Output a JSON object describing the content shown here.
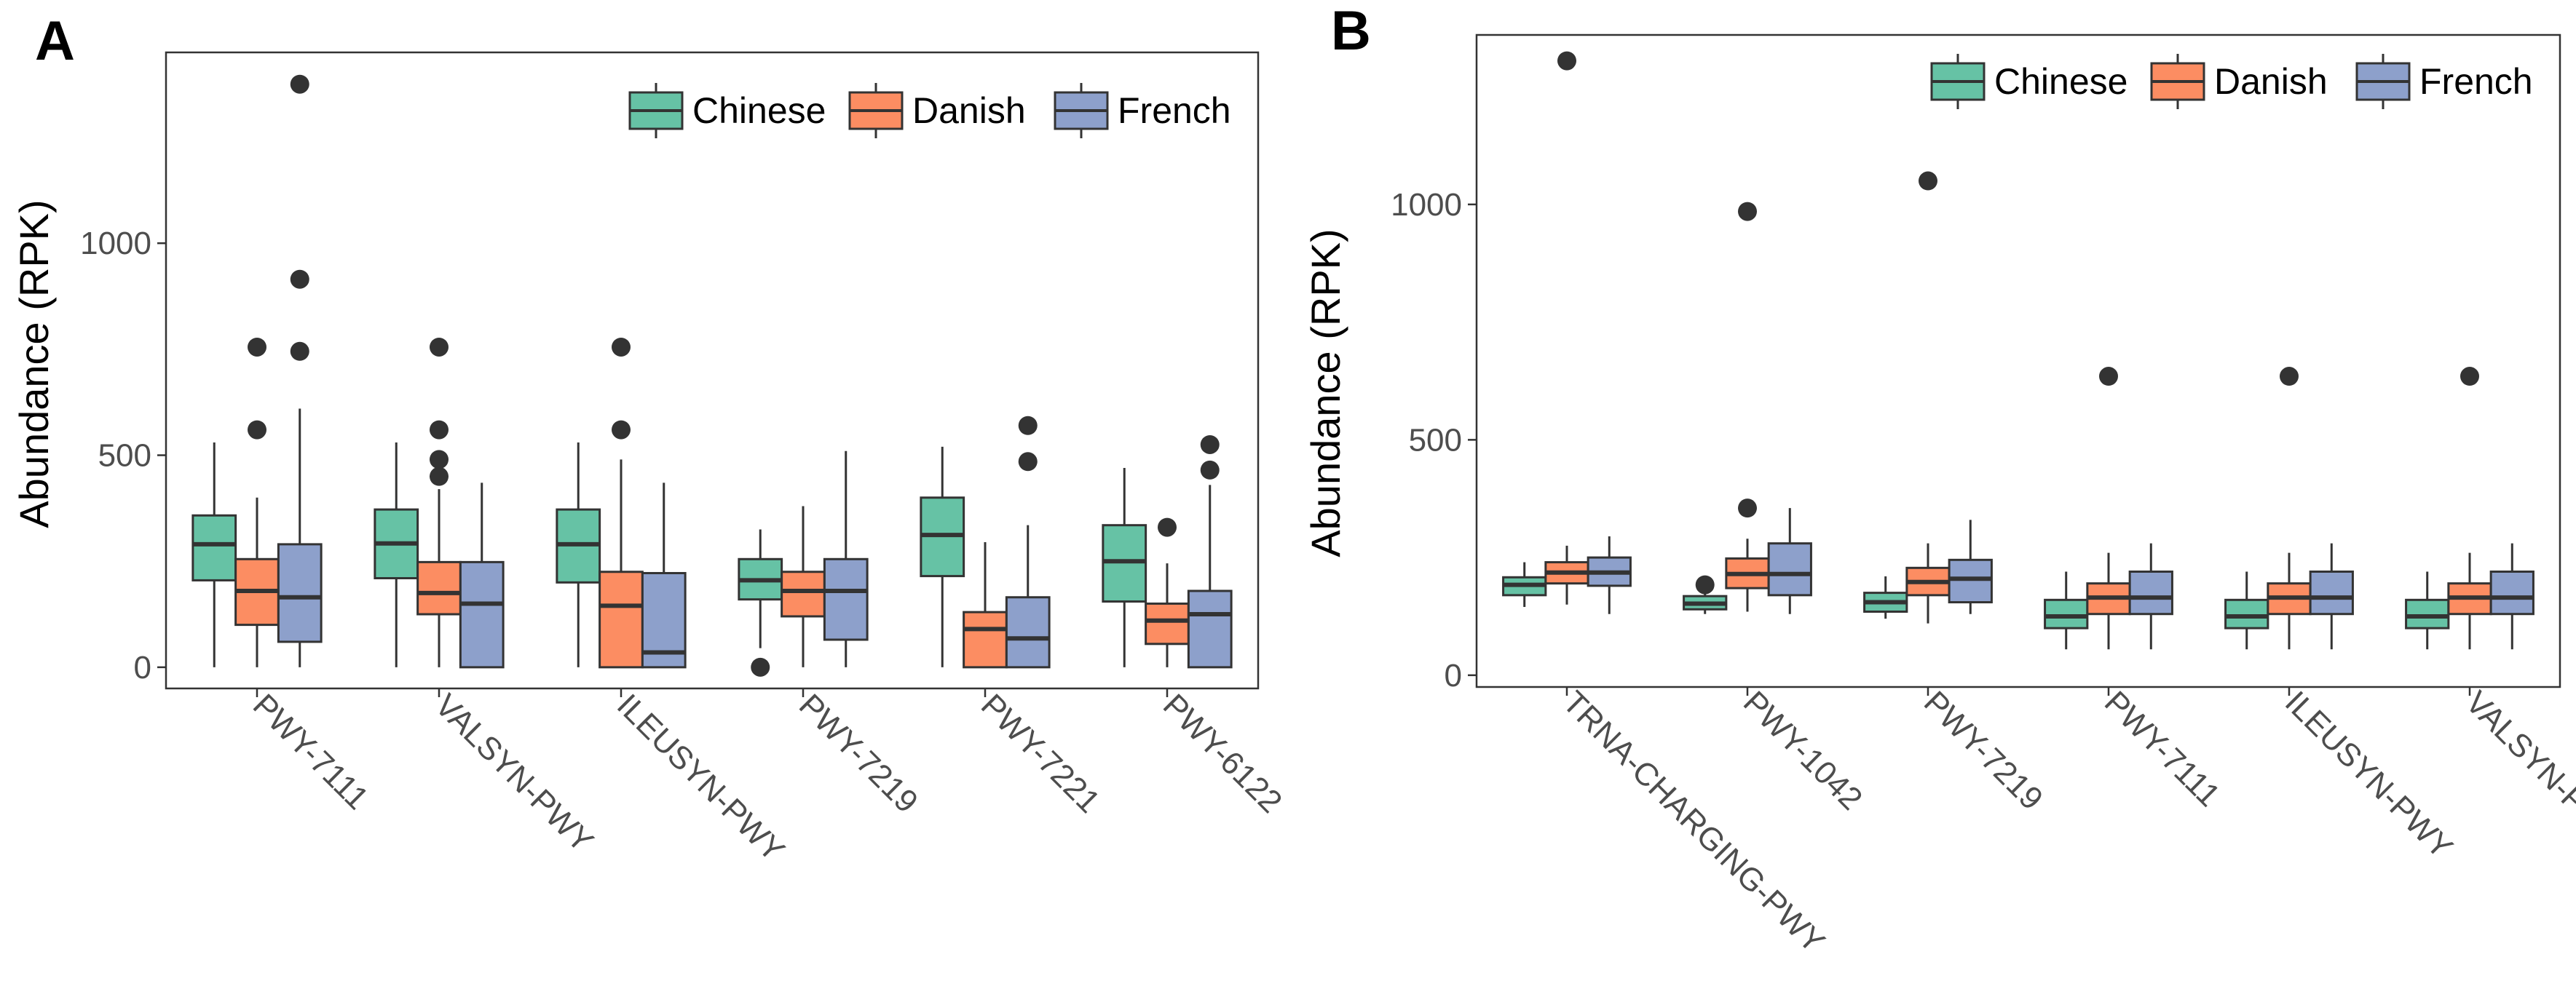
{
  "colors": {
    "Chinese": "#66c2a5",
    "Danish": "#fc8d62",
    "French": "#8da0cb",
    "stroke": "#333333",
    "frame": "#333333"
  },
  "chart_data": [
    {
      "panel": "A",
      "type": "boxplot",
      "ylabel": "Abundance (RPK)",
      "ylim": [
        -50,
        1450
      ],
      "yticks": [
        0,
        500,
        1000
      ],
      "yticklabels": [
        "0",
        "500",
        "1000"
      ],
      "legend": [
        "Chinese",
        "Danish",
        "French"
      ],
      "legend_position": "top-right",
      "categories": [
        "PWY-7111",
        "VALSYN-PWY",
        "ILEUSYN-PWY",
        "PWY-7219",
        "PWY-7221",
        "PWY-6122"
      ],
      "series": [
        {
          "name": "Chinese",
          "boxes": [
            {
              "whisker_low": 0,
              "q1": 205,
              "median": 290,
              "q3": 358,
              "whisker_high": 530,
              "outliers": []
            },
            {
              "whisker_low": 0,
              "q1": 210,
              "median": 292,
              "q3": 372,
              "whisker_high": 530,
              "outliers": []
            },
            {
              "whisker_low": 0,
              "q1": 200,
              "median": 290,
              "q3": 372,
              "whisker_high": 530,
              "outliers": []
            },
            {
              "whisker_low": 45,
              "q1": 160,
              "median": 205,
              "q3": 255,
              "whisker_high": 325,
              "outliers": [
                0
              ]
            },
            {
              "whisker_low": 0,
              "q1": 215,
              "median": 312,
              "q3": 400,
              "whisker_high": 520,
              "outliers": []
            },
            {
              "whisker_low": 0,
              "q1": 155,
              "median": 250,
              "q3": 335,
              "whisker_high": 470,
              "outliers": []
            }
          ]
        },
        {
          "name": "Danish",
          "boxes": [
            {
              "whisker_low": 0,
              "q1": 100,
              "median": 180,
              "q3": 255,
              "whisker_high": 400,
              "outliers": [
                560,
                755
              ]
            },
            {
              "whisker_low": 0,
              "q1": 125,
              "median": 175,
              "q3": 248,
              "whisker_high": 420,
              "outliers": [
                450,
                490,
                560,
                755
              ]
            },
            {
              "whisker_low": 0,
              "q1": 0,
              "median": 145,
              "q3": 225,
              "whisker_high": 490,
              "outliers": [
                560,
                755
              ]
            },
            {
              "whisker_low": 0,
              "q1": 120,
              "median": 180,
              "q3": 225,
              "whisker_high": 380,
              "outliers": []
            },
            {
              "whisker_low": 0,
              "q1": 0,
              "median": 90,
              "q3": 130,
              "whisker_high": 295,
              "outliers": []
            },
            {
              "whisker_low": 0,
              "q1": 55,
              "median": 110,
              "q3": 150,
              "whisker_high": 245,
              "outliers": [
                330
              ]
            }
          ]
        },
        {
          "name": "French",
          "boxes": [
            {
              "whisker_low": 0,
              "q1": 60,
              "median": 165,
              "q3": 290,
              "whisker_high": 610,
              "outliers": [
                745,
                915,
                1375
              ]
            },
            {
              "whisker_low": 0,
              "q1": 0,
              "median": 150,
              "q3": 248,
              "whisker_high": 435,
              "outliers": []
            },
            {
              "whisker_low": 0,
              "q1": 0,
              "median": 35,
              "q3": 222,
              "whisker_high": 435,
              "outliers": []
            },
            {
              "whisker_low": 0,
              "q1": 65,
              "median": 180,
              "q3": 255,
              "whisker_high": 510,
              "outliers": []
            },
            {
              "whisker_low": 0,
              "q1": 0,
              "median": 68,
              "q3": 165,
              "whisker_high": 335,
              "outliers": [
                485,
                570
              ]
            },
            {
              "whisker_low": 0,
              "q1": 0,
              "median": 125,
              "q3": 180,
              "whisker_high": 430,
              "outliers": [
                465,
                525
              ]
            }
          ]
        }
      ]
    },
    {
      "panel": "B",
      "type": "boxplot",
      "ylabel": "Abundance (RPK)",
      "ylim": [
        -25,
        1360
      ],
      "yticks": [
        0,
        500,
        1000
      ],
      "yticklabels": [
        "0",
        "500",
        "1000"
      ],
      "legend": [
        "Chinese",
        "Danish",
        "French"
      ],
      "legend_position": "top-right",
      "categories": [
        "TRNA-CHARGING-PWY",
        "PWY-1042",
        "PWY-7219",
        "PWY-7111",
        "ILEUSYN-PWY",
        "VALSYN-PWY"
      ],
      "series": [
        {
          "name": "Chinese",
          "boxes": [
            {
              "whisker_low": 145,
              "q1": 170,
              "median": 192,
              "q3": 208,
              "whisker_high": 240,
              "outliers": []
            },
            {
              "whisker_low": 130,
              "q1": 140,
              "median": 152,
              "q3": 168,
              "whisker_high": 178,
              "outliers": [
                192
              ]
            },
            {
              "whisker_low": 120,
              "q1": 135,
              "median": 155,
              "q3": 175,
              "whisker_high": 210,
              "outliers": []
            },
            {
              "whisker_low": 55,
              "q1": 100,
              "median": 125,
              "q3": 160,
              "whisker_high": 220,
              "outliers": []
            },
            {
              "whisker_low": 55,
              "q1": 100,
              "median": 125,
              "q3": 160,
              "whisker_high": 220,
              "outliers": []
            },
            {
              "whisker_low": 55,
              "q1": 100,
              "median": 125,
              "q3": 160,
              "whisker_high": 220,
              "outliers": []
            }
          ]
        },
        {
          "name": "Danish",
          "boxes": [
            {
              "whisker_low": 150,
              "q1": 195,
              "median": 218,
              "q3": 240,
              "whisker_high": 275,
              "outliers": [
                1305
              ]
            },
            {
              "whisker_low": 135,
              "q1": 185,
              "median": 215,
              "q3": 248,
              "whisker_high": 290,
              "outliers": [
                355,
                985
              ]
            },
            {
              "whisker_low": 110,
              "q1": 170,
              "median": 198,
              "q3": 228,
              "whisker_high": 280,
              "outliers": [
                1050
              ]
            },
            {
              "whisker_low": 55,
              "q1": 130,
              "median": 165,
              "q3": 195,
              "whisker_high": 260,
              "outliers": [
                635
              ]
            },
            {
              "whisker_low": 55,
              "q1": 130,
              "median": 165,
              "q3": 195,
              "whisker_high": 260,
              "outliers": [
                635
              ]
            },
            {
              "whisker_low": 55,
              "q1": 130,
              "median": 165,
              "q3": 195,
              "whisker_high": 260,
              "outliers": [
                635
              ]
            }
          ]
        },
        {
          "name": "French",
          "boxes": [
            {
              "whisker_low": 130,
              "q1": 190,
              "median": 218,
              "q3": 250,
              "whisker_high": 295,
              "outliers": []
            },
            {
              "whisker_low": 130,
              "q1": 170,
              "median": 215,
              "q3": 280,
              "whisker_high": 355,
              "outliers": []
            },
            {
              "whisker_low": 130,
              "q1": 155,
              "median": 205,
              "q3": 245,
              "whisker_high": 330,
              "outliers": []
            },
            {
              "whisker_low": 55,
              "q1": 130,
              "median": 165,
              "q3": 220,
              "whisker_high": 280,
              "outliers": []
            },
            {
              "whisker_low": 55,
              "q1": 130,
              "median": 165,
              "q3": 220,
              "whisker_high": 280,
              "outliers": []
            },
            {
              "whisker_low": 55,
              "q1": 130,
              "median": 165,
              "q3": 220,
              "whisker_high": 280,
              "outliers": []
            }
          ]
        }
      ]
    }
  ]
}
